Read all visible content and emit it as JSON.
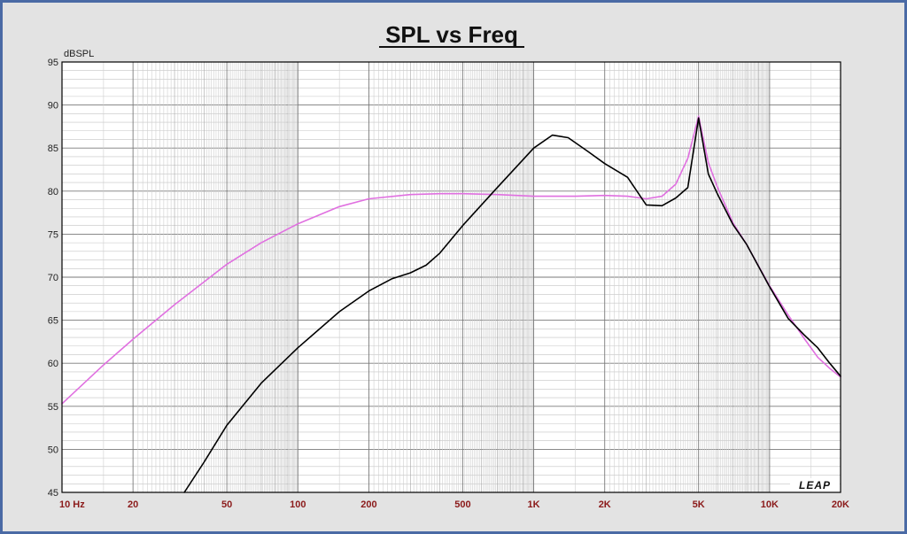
{
  "chart_data": {
    "type": "line",
    "title": "SPL vs Freq",
    "ylabel": "dBSPL",
    "xlabel": "",
    "x_scale": "log",
    "xlim": [
      10,
      20000
    ],
    "ylim": [
      45,
      95
    ],
    "grid": true,
    "x_ticks": [
      {
        "value": 10,
        "label": "10  Hz"
      },
      {
        "value": 20,
        "label": "20"
      },
      {
        "value": 50,
        "label": "50"
      },
      {
        "value": 100,
        "label": "100"
      },
      {
        "value": 200,
        "label": "200"
      },
      {
        "value": 500,
        "label": "500"
      },
      {
        "value": 1000,
        "label": "1K"
      },
      {
        "value": 2000,
        "label": "2K"
      },
      {
        "value": 5000,
        "label": "5K"
      },
      {
        "value": 10000,
        "label": "10K"
      },
      {
        "value": 20000,
        "label": "20K"
      }
    ],
    "y_ticks": [
      {
        "value": 95,
        "label": "95"
      },
      {
        "value": 90,
        "label": "90"
      },
      {
        "value": 85,
        "label": "85"
      },
      {
        "value": 80,
        "label": "80"
      },
      {
        "value": 75,
        "label": "75"
      },
      {
        "value": 70,
        "label": "70"
      },
      {
        "value": 65,
        "label": "65"
      },
      {
        "value": 60,
        "label": "60"
      },
      {
        "value": 55,
        "label": "55"
      },
      {
        "value": 50,
        "label": "50"
      },
      {
        "value": 45,
        "label": "45"
      }
    ],
    "series": [
      {
        "color": "#e070e0",
        "x": [
          10,
          15,
          20,
          30,
          50,
          70,
          100,
          150,
          200,
          300,
          400,
          500,
          700,
          1000,
          1500,
          2000,
          2500,
          3000,
          3500,
          4000,
          4500,
          5000,
          5500,
          6000,
          7000,
          8000,
          10000,
          12000,
          14000,
          16000,
          18000,
          20000
        ],
        "y": [
          55.3,
          59.8,
          62.8,
          66.8,
          71.5,
          74.0,
          76.2,
          78.2,
          79.1,
          79.6,
          79.7,
          79.7,
          79.6,
          79.4,
          79.4,
          79.5,
          79.4,
          79.1,
          79.4,
          80.8,
          83.8,
          88.7,
          83.3,
          80.5,
          76.3,
          73.8,
          69.0,
          65.6,
          62.9,
          60.7,
          59.4,
          58.4
        ]
      },
      {
        "color": "#000000",
        "x": [
          33,
          40,
          50,
          70,
          100,
          150,
          200,
          250,
          300,
          350,
          400,
          500,
          700,
          1000,
          1200,
          1400,
          1700,
          2000,
          2500,
          3000,
          3500,
          4000,
          4500,
          5000,
          5500,
          6000,
          7000,
          8000,
          10000,
          12000,
          14000,
          16000,
          18000,
          20000
        ],
        "y": [
          45.0,
          48.5,
          52.8,
          57.7,
          61.8,
          66.0,
          68.4,
          69.8,
          70.5,
          71.4,
          72.8,
          76.0,
          80.4,
          85.0,
          86.5,
          86.2,
          84.6,
          83.2,
          81.6,
          78.4,
          78.3,
          79.2,
          80.4,
          88.5,
          82.0,
          79.7,
          76.1,
          73.8,
          68.9,
          65.2,
          63.3,
          61.8,
          60.0,
          58.5
        ]
      }
    ],
    "logo": "LEAP"
  }
}
